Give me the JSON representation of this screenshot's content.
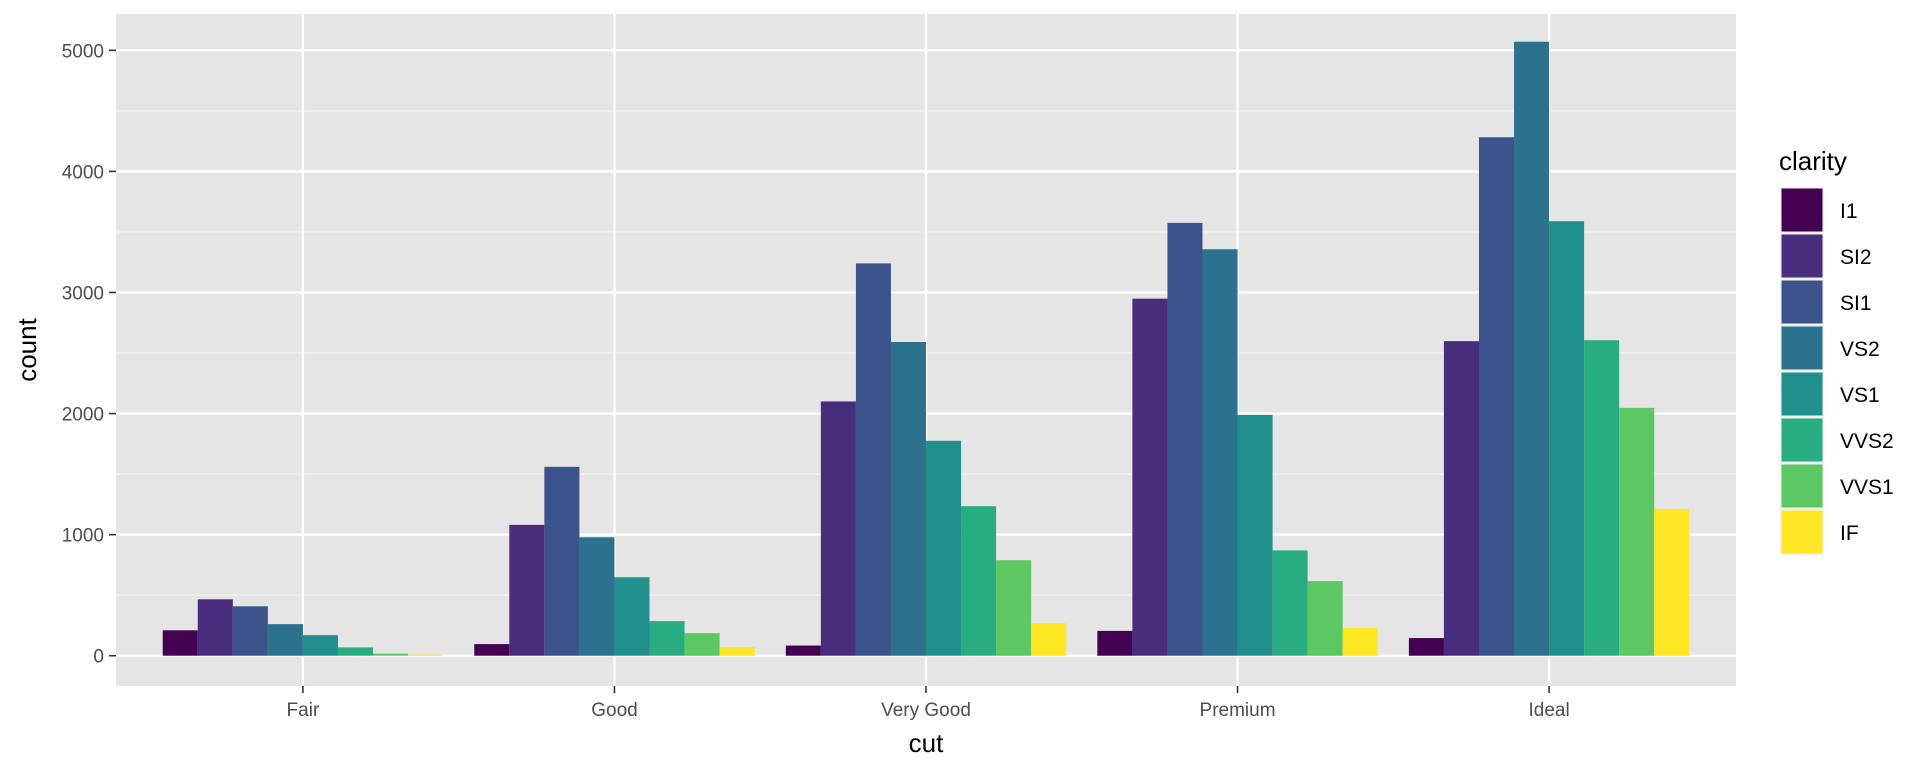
{
  "chart_data": {
    "type": "bar",
    "title": "",
    "xlabel": "cut",
    "ylabel": "count",
    "categories": [
      "Fair",
      "Good",
      "Very Good",
      "Premium",
      "Ideal"
    ],
    "ylim": [
      -250,
      5300
    ],
    "yticks": [
      0,
      1000,
      2000,
      3000,
      4000,
      5000
    ],
    "grid": true,
    "legend": {
      "title": "clarity",
      "position": "right"
    },
    "series": [
      {
        "name": "I1",
        "color": "#440154",
        "values": [
          210,
          96,
          84,
          205,
          146
        ]
      },
      {
        "name": "SI2",
        "color": "#472D7B",
        "values": [
          466,
          1081,
          2100,
          2949,
          2598
        ]
      },
      {
        "name": "SI1",
        "color": "#3B528B",
        "values": [
          408,
          1560,
          3240,
          3575,
          4282
        ]
      },
      {
        "name": "VS2",
        "color": "#2C728E",
        "values": [
          261,
          978,
          2591,
          3357,
          5071
        ]
      },
      {
        "name": "VS1",
        "color": "#21908C",
        "values": [
          170,
          648,
          1775,
          1989,
          3589
        ]
      },
      {
        "name": "VVS2",
        "color": "#27AD81",
        "values": [
          69,
          286,
          1235,
          870,
          2606
        ]
      },
      {
        "name": "VVS1",
        "color": "#5DC863",
        "values": [
          17,
          186,
          789,
          616,
          2047
        ]
      },
      {
        "name": "IF",
        "color": "#FDE725",
        "values": [
          9,
          71,
          268,
          230,
          1212
        ]
      }
    ]
  }
}
